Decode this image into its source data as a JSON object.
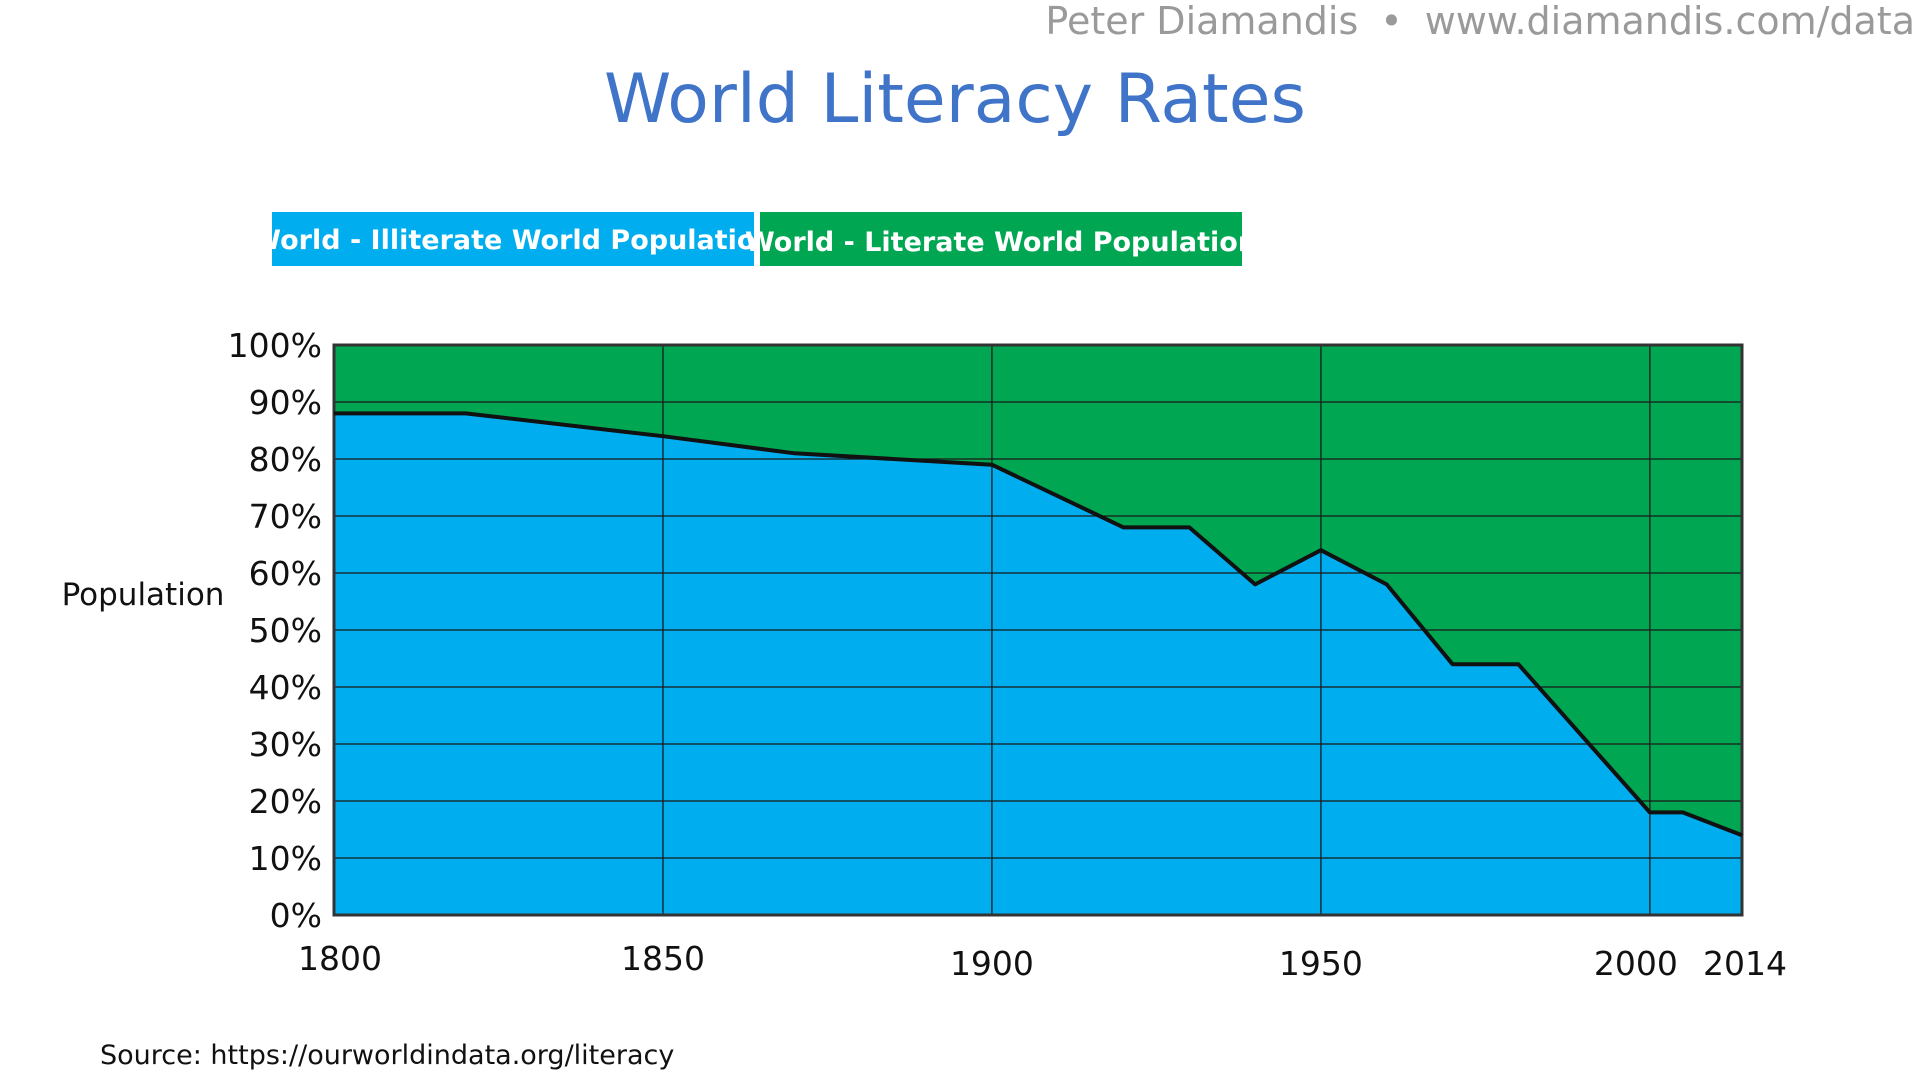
{
  "header": {
    "author": "Peter Diamandis",
    "separator": "•",
    "website": "www.diamandis.com/data"
  },
  "source": "Source: https://ourworldindata.org/literacy",
  "colors": {
    "title": "#3f74c8",
    "illiterate": "#00aeef",
    "literate": "#00a651",
    "line": "#111111",
    "grid": "#1a1a1a"
  },
  "chart_data": {
    "type": "area",
    "title": "World Literacy Rates",
    "ylabel": "Population",
    "xlabel": "",
    "stacked": true,
    "xlim": [
      1800,
      2014
    ],
    "ylim": [
      0,
      100
    ],
    "x_ticks": [
      1800,
      1850,
      1900,
      1950,
      2000,
      2014
    ],
    "x_tick_labels": [
      "1800",
      "1850",
      "1900",
      "1950",
      "2000",
      "2014"
    ],
    "y_ticks": [
      0,
      10,
      20,
      30,
      40,
      50,
      60,
      70,
      80,
      90,
      100
    ],
    "y_tick_labels": [
      "0%",
      "10%",
      "20%",
      "30%",
      "40%",
      "50%",
      "60%",
      "70%",
      "80%",
      "90%",
      "100%"
    ],
    "legend_position": "top-left",
    "grid": true,
    "x": [
      1800,
      1820,
      1850,
      1870,
      1900,
      1920,
      1930,
      1940,
      1950,
      1960,
      1970,
      1980,
      2000,
      2005,
      2014
    ],
    "series": [
      {
        "name": "World - Illiterate World Population",
        "values": [
          88,
          88,
          84,
          81,
          79,
          68,
          68,
          58,
          64,
          58,
          44,
          44,
          18,
          18,
          14
        ]
      },
      {
        "name": "World - Literate World Population",
        "values": [
          12,
          12,
          16,
          19,
          21,
          32,
          32,
          42,
          36,
          42,
          56,
          56,
          82,
          82,
          86
        ]
      }
    ]
  }
}
